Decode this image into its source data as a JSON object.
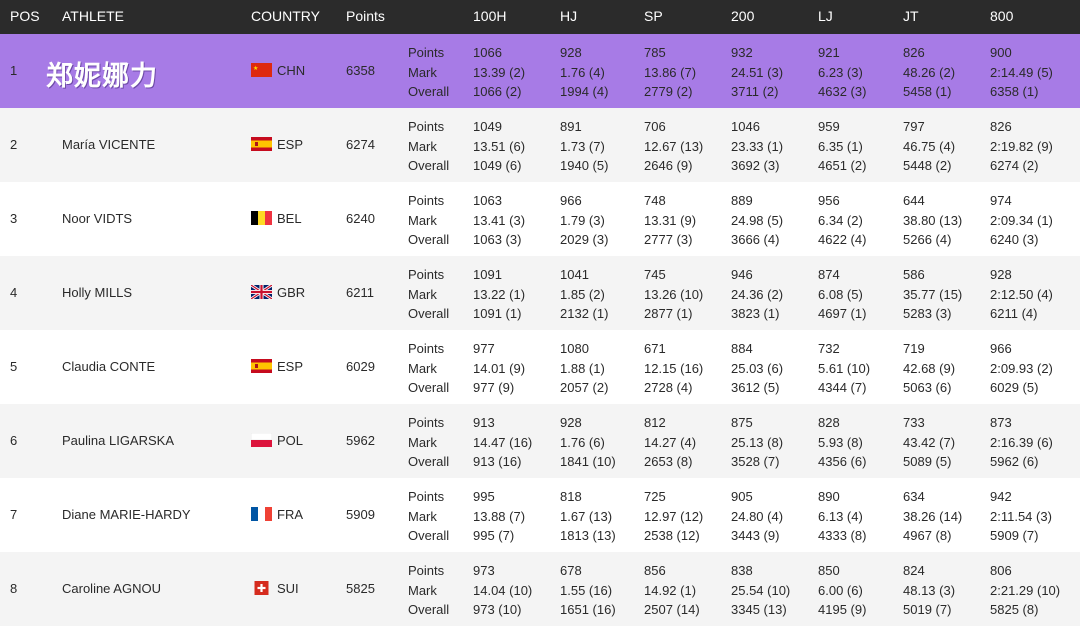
{
  "header": {
    "pos": "POS",
    "athlete": "ATHLETE",
    "country": "COUNTRY",
    "points": "Points",
    "events": [
      "100H",
      "HJ",
      "SP",
      "200",
      "LJ",
      "JT",
      "800"
    ]
  },
  "row_labels": [
    "Points",
    "Mark",
    "Overall"
  ],
  "rows": [
    {
      "pos": "1",
      "athlete": "郑妮娜力",
      "flag": "china-flag-icon",
      "country": "CHN",
      "points": "6358",
      "events": [
        [
          "1066",
          "13.39 (2)",
          "1066 (2)"
        ],
        [
          "928",
          "1.76 (4)",
          "1994 (4)"
        ],
        [
          "785",
          "13.86 (7)",
          "2779 (2)"
        ],
        [
          "932",
          "24.51 (3)",
          "3711 (2)"
        ],
        [
          "921",
          "6.23 (3)",
          "4632 (3)"
        ],
        [
          "826",
          "48.26 (2)",
          "5458 (1)"
        ],
        [
          "900",
          "2:14.49 (5)",
          "6358 (1)"
        ]
      ]
    },
    {
      "pos": "2",
      "athlete": "María VICENTE",
      "flag": "spain-flag-icon",
      "country": "ESP",
      "points": "6274",
      "events": [
        [
          "1049",
          "13.51 (6)",
          "1049 (6)"
        ],
        [
          "891",
          "1.73 (7)",
          "1940 (5)"
        ],
        [
          "706",
          "12.67 (13)",
          "2646 (9)"
        ],
        [
          "1046",
          "23.33 (1)",
          "3692 (3)"
        ],
        [
          "959",
          "6.35 (1)",
          "4651 (2)"
        ],
        [
          "797",
          "46.75 (4)",
          "5448 (2)"
        ],
        [
          "826",
          "2:19.82 (9)",
          "6274 (2)"
        ]
      ]
    },
    {
      "pos": "3",
      "athlete": "Noor VIDTS",
      "flag": "belgium-flag-icon",
      "country": "BEL",
      "points": "6240",
      "events": [
        [
          "1063",
          "13.41 (3)",
          "1063 (3)"
        ],
        [
          "966",
          "1.79 (3)",
          "2029 (3)"
        ],
        [
          "748",
          "13.31 (9)",
          "2777 (3)"
        ],
        [
          "889",
          "24.98 (5)",
          "3666 (4)"
        ],
        [
          "956",
          "6.34 (2)",
          "4622 (4)"
        ],
        [
          "644",
          "38.80 (13)",
          "5266 (4)"
        ],
        [
          "974",
          "2:09.34 (1)",
          "6240 (3)"
        ]
      ]
    },
    {
      "pos": "4",
      "athlete": "Holly MILLS",
      "flag": "uk-flag-icon",
      "country": "GBR",
      "points": "6211",
      "events": [
        [
          "1091",
          "13.22 (1)",
          "1091 (1)"
        ],
        [
          "1041",
          "1.85 (2)",
          "2132 (1)"
        ],
        [
          "745",
          "13.26 (10)",
          "2877 (1)"
        ],
        [
          "946",
          "24.36 (2)",
          "3823 (1)"
        ],
        [
          "874",
          "6.08 (5)",
          "4697 (1)"
        ],
        [
          "586",
          "35.77 (15)",
          "5283 (3)"
        ],
        [
          "928",
          "2:12.50 (4)",
          "6211 (4)"
        ]
      ]
    },
    {
      "pos": "5",
      "athlete": "Claudia CONTE",
      "flag": "spain-flag-icon",
      "country": "ESP",
      "points": "6029",
      "events": [
        [
          "977",
          "14.01 (9)",
          "977 (9)"
        ],
        [
          "1080",
          "1.88 (1)",
          "2057 (2)"
        ],
        [
          "671",
          "12.15 (16)",
          "2728 (4)"
        ],
        [
          "884",
          "25.03 (6)",
          "3612 (5)"
        ],
        [
          "732",
          "5.61 (10)",
          "4344 (7)"
        ],
        [
          "719",
          "42.68 (9)",
          "5063 (6)"
        ],
        [
          "966",
          "2:09.93 (2)",
          "6029 (5)"
        ]
      ]
    },
    {
      "pos": "6",
      "athlete": "Paulina LIGARSKA",
      "flag": "poland-flag-icon",
      "country": "POL",
      "points": "5962",
      "events": [
        [
          "913",
          "14.47 (16)",
          "913 (16)"
        ],
        [
          "928",
          "1.76 (6)",
          "1841 (10)"
        ],
        [
          "812",
          "14.27 (4)",
          "2653 (8)"
        ],
        [
          "875",
          "25.13 (8)",
          "3528 (7)"
        ],
        [
          "828",
          "5.93 (8)",
          "4356 (6)"
        ],
        [
          "733",
          "43.42 (7)",
          "5089 (5)"
        ],
        [
          "873",
          "2:16.39 (6)",
          "5962 (6)"
        ]
      ]
    },
    {
      "pos": "7",
      "athlete": "Diane MARIE-HARDY",
      "flag": "france-flag-icon",
      "country": "FRA",
      "points": "5909",
      "events": [
        [
          "995",
          "13.88 (7)",
          "995 (7)"
        ],
        [
          "818",
          "1.67 (13)",
          "1813 (13)"
        ],
        [
          "725",
          "12.97 (12)",
          "2538 (12)"
        ],
        [
          "905",
          "24.80 (4)",
          "3443 (9)"
        ],
        [
          "890",
          "6.13 (4)",
          "4333 (8)"
        ],
        [
          "634",
          "38.26 (14)",
          "4967 (8)"
        ],
        [
          "942",
          "2:11.54 (3)",
          "5909 (7)"
        ]
      ]
    },
    {
      "pos": "8",
      "athlete": "Caroline AGNOU",
      "flag": "switzerland-flag-icon",
      "country": "SUI",
      "points": "5825",
      "events": [
        [
          "973",
          "14.04 (10)",
          "973 (10)"
        ],
        [
          "678",
          "1.55 (16)",
          "1651 (16)"
        ],
        [
          "856",
          "14.92 (1)",
          "2507 (14)"
        ],
        [
          "838",
          "25.54 (10)",
          "3345 (13)"
        ],
        [
          "850",
          "6.00 (6)",
          "4195 (9)"
        ],
        [
          "824",
          "48.13 (3)",
          "5019 (7)"
        ],
        [
          "806",
          "2:21.29 (10)",
          "5825 (8)"
        ]
      ]
    }
  ]
}
